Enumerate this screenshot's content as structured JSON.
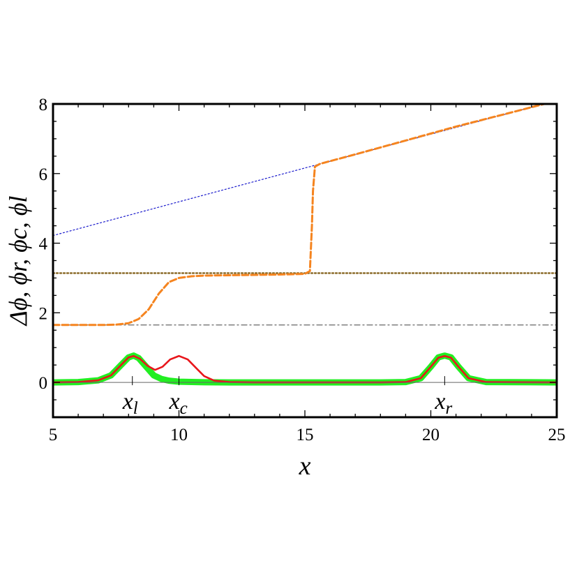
{
  "chart_data": {
    "type": "line",
    "xlabel": "x",
    "ylabel": "Δϕ, ϕr, ϕc, ϕl",
    "xlim": [
      5,
      25
    ],
    "ylim": [
      -1,
      8
    ],
    "x_ticks": [
      5,
      10,
      15,
      20,
      25
    ],
    "y_ticks": [
      0,
      2,
      4,
      6,
      8
    ],
    "x_tick_labels": [
      "5",
      "10",
      "15",
      "20",
      "25"
    ],
    "y_tick_labels": [
      "0",
      "2",
      "4",
      "6",
      "8"
    ],
    "grid": false,
    "legend": "none",
    "annotations": [
      {
        "label_main": "x",
        "label_sub": "l",
        "x": 8.15
      },
      {
        "label_main": "x",
        "label_sub": "c",
        "x": 10.0
      },
      {
        "label_main": "x",
        "label_sub": "r",
        "x": 20.55
      }
    ],
    "series": [
      {
        "style": "dotted",
        "color": "#1a1acc",
        "points": [
          [
            5,
            4.22
          ],
          [
            25,
            8.1
          ]
        ]
      },
      {
        "style": "dotted",
        "color": "#8b6b2a",
        "points": [
          [
            5,
            3.14
          ],
          [
            25,
            3.14
          ]
        ]
      },
      {
        "style": "dashdot",
        "color": "#555555",
        "points": [
          [
            5,
            1.65
          ],
          [
            25,
            1.65
          ]
        ]
      },
      {
        "style": "dashed",
        "color": "#f5841f",
        "points": [
          [
            5,
            1.65
          ],
          [
            7,
            1.65
          ],
          [
            7.5,
            1.66
          ],
          [
            8,
            1.7
          ],
          [
            8.4,
            1.82
          ],
          [
            8.8,
            2.1
          ],
          [
            9.2,
            2.55
          ],
          [
            9.6,
            2.88
          ],
          [
            10,
            3.0
          ],
          [
            10.5,
            3.05
          ],
          [
            11,
            3.07
          ],
          [
            12,
            3.08
          ],
          [
            13,
            3.09
          ],
          [
            14,
            3.1
          ],
          [
            15,
            3.12
          ],
          [
            15.2,
            3.2
          ],
          [
            15.28,
            4.5
          ],
          [
            15.32,
            5.5
          ],
          [
            15.4,
            6.2
          ],
          [
            15.6,
            6.28
          ],
          [
            17,
            6.55
          ],
          [
            19,
            6.95
          ],
          [
            21,
            7.35
          ],
          [
            23,
            7.72
          ],
          [
            24.5,
            8.0
          ]
        ]
      },
      {
        "style": "thick",
        "color": "#22ee22",
        "points": [
          [
            5,
            0
          ],
          [
            6,
            0.01
          ],
          [
            6.8,
            0.06
          ],
          [
            7.3,
            0.2
          ],
          [
            7.7,
            0.5
          ],
          [
            8.0,
            0.72
          ],
          [
            8.2,
            0.77
          ],
          [
            8.4,
            0.7
          ],
          [
            8.7,
            0.45
          ],
          [
            9.0,
            0.2
          ],
          [
            9.3,
            0.1
          ],
          [
            9.6,
            0.05
          ],
          [
            10,
            0.02
          ],
          [
            11,
            0.005
          ],
          [
            12,
            0
          ],
          [
            18,
            0
          ],
          [
            19,
            0.01
          ],
          [
            19.6,
            0.12
          ],
          [
            20.0,
            0.45
          ],
          [
            20.3,
            0.72
          ],
          [
            20.55,
            0.77
          ],
          [
            20.8,
            0.72
          ],
          [
            21.1,
            0.45
          ],
          [
            21.5,
            0.12
          ],
          [
            22.2,
            0.01
          ],
          [
            25,
            0
          ]
        ]
      },
      {
        "style": "solid",
        "color": "#e8161b",
        "points": [
          [
            5,
            0
          ],
          [
            6,
            0.01
          ],
          [
            6.8,
            0.06
          ],
          [
            7.3,
            0.2
          ],
          [
            7.7,
            0.5
          ],
          [
            8.0,
            0.72
          ],
          [
            8.2,
            0.76
          ],
          [
            8.45,
            0.68
          ],
          [
            8.75,
            0.48
          ],
          [
            9.05,
            0.36
          ],
          [
            9.35,
            0.45
          ],
          [
            9.65,
            0.66
          ],
          [
            10.0,
            0.76
          ],
          [
            10.35,
            0.66
          ],
          [
            10.7,
            0.4
          ],
          [
            11.0,
            0.18
          ],
          [
            11.4,
            0.05
          ],
          [
            12,
            0.01
          ],
          [
            13,
            0
          ],
          [
            18,
            0
          ],
          [
            19,
            0.01
          ],
          [
            19.6,
            0.12
          ],
          [
            20.0,
            0.45
          ],
          [
            20.3,
            0.71
          ],
          [
            20.55,
            0.76
          ],
          [
            20.8,
            0.71
          ],
          [
            21.1,
            0.45
          ],
          [
            21.5,
            0.12
          ],
          [
            22.2,
            0.01
          ],
          [
            25,
            0
          ]
        ]
      }
    ]
  }
}
